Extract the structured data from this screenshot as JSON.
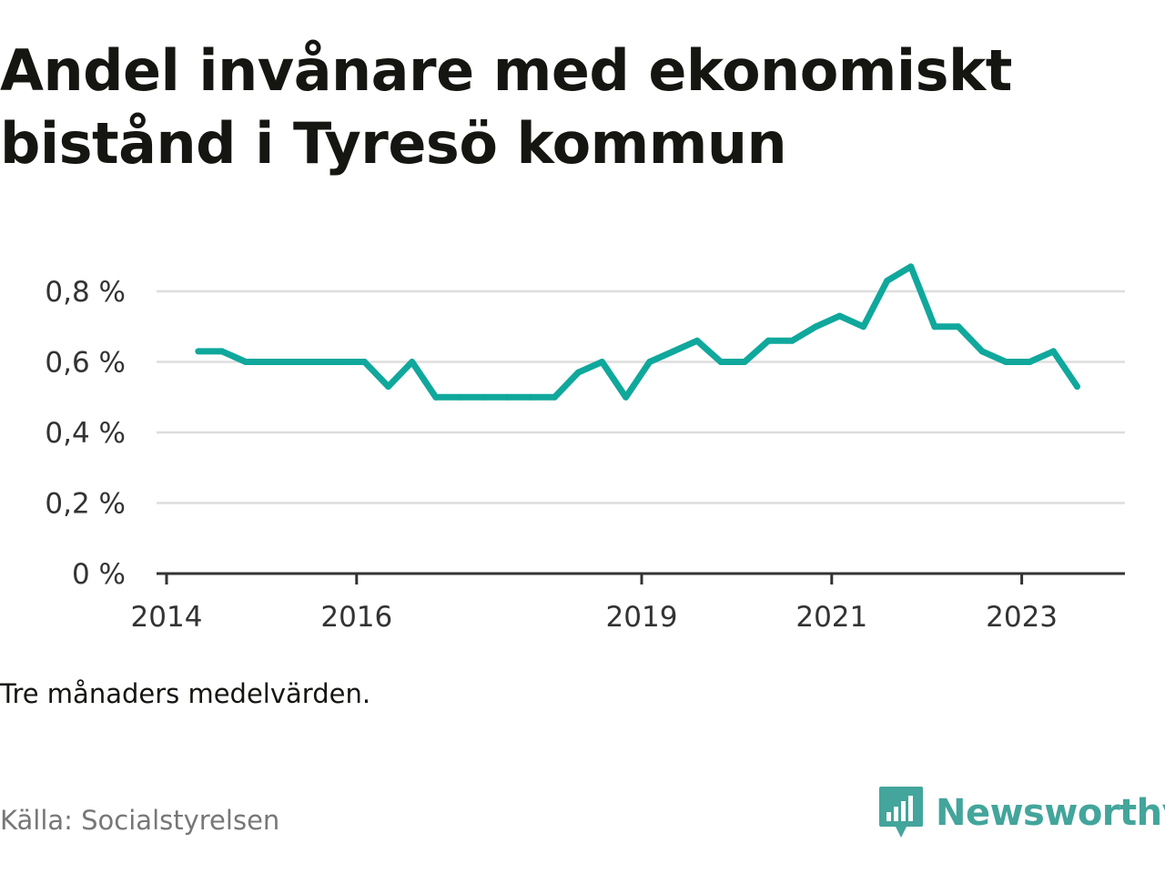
{
  "title": "Andel invånare med ekonomiskt bistånd i Tyresö kommun",
  "note": "Tre månaders medelvärden.",
  "source": "Källa: Socialstyrelsen",
  "brand": {
    "name": "Newsworthy",
    "color": "#43a59b",
    "icon": "newsworthy-logo-icon"
  },
  "colors": {
    "line": "#10a89c",
    "grid": "#dddddd",
    "axis": "#333333"
  },
  "chart_data": {
    "type": "line",
    "title": "Andel invånare med ekonomiskt bistånd i Tyresö kommun",
    "xlabel": "",
    "ylabel": "",
    "ylim": [
      0,
      0.8
    ],
    "yticks": [
      0,
      0.2,
      0.4,
      0.6,
      0.8
    ],
    "ytick_labels": [
      "0 %",
      "0,2 %",
      "0,4 %",
      "0,6 %",
      "0,8 %"
    ],
    "xticks": [
      2014,
      2016,
      2019,
      2021,
      2023
    ],
    "xtick_labels": [
      "2014",
      "2016",
      "2019",
      "2021",
      "2023"
    ],
    "grid": true,
    "series": [
      {
        "x": [
          "2014-05",
          "2014-08",
          "2014-11",
          "2015-02",
          "2015-05",
          "2015-08",
          "2015-11",
          "2016-02",
          "2016-05",
          "2016-08",
          "2016-11",
          "2017-02",
          "2017-05",
          "2017-08",
          "2017-11",
          "2018-02",
          "2018-05",
          "2018-08",
          "2018-11",
          "2019-02",
          "2019-05",
          "2019-08",
          "2019-11",
          "2020-02",
          "2020-05",
          "2020-08",
          "2020-11",
          "2021-02",
          "2021-05",
          "2021-08",
          "2021-11",
          "2022-02",
          "2022-05",
          "2022-08",
          "2022-11",
          "2023-02",
          "2023-05",
          "2023-08"
        ],
        "values": [
          0.63,
          0.63,
          0.6,
          0.6,
          0.6,
          0.6,
          0.6,
          0.6,
          0.53,
          0.6,
          0.5,
          0.5,
          0.5,
          0.5,
          0.5,
          0.5,
          0.57,
          0.6,
          0.5,
          0.6,
          0.63,
          0.66,
          0.6,
          0.6,
          0.66,
          0.66,
          0.7,
          0.73,
          0.7,
          0.83,
          0.87,
          0.7,
          0.7,
          0.63,
          0.6,
          0.6,
          0.63,
          0.53
        ]
      }
    ]
  }
}
